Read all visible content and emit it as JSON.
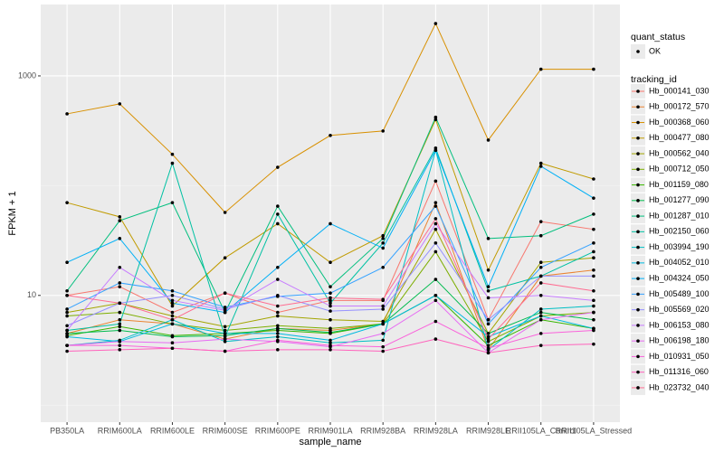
{
  "chart_data": {
    "type": "line",
    "x_label": "sample_name",
    "y_label": "FPKM + 1",
    "log_y": true,
    "grid": true,
    "ylim": [
      0.7,
      4470
    ],
    "yticks": [
      10,
      1000
    ],
    "y_minor_ticks": [
      1,
      100
    ],
    "point_legend_title": "quant_status",
    "point_legend_label": "OK",
    "legend_title": "tracking_id",
    "legend_position": "right",
    "categories": [
      "PB350LA",
      "RRIM600LA",
      "RRIM600LE",
      "RRIM600SE",
      "RRIM600PE",
      "RRIM901LA",
      "RRIM928BA",
      "RRIM928LA",
      "RRIM928LE",
      "RRII105LA_Control",
      "RRII105LA_Stressed"
    ],
    "series": [
      {
        "name": "Hb_000141_030",
        "color": "#F8766D",
        "values": [
          10,
          12,
          7,
          10.5,
          7,
          9,
          9,
          110,
          6,
          47,
          40
        ]
      },
      {
        "name": "Hb_000172_570",
        "color": "#EA8331",
        "values": [
          4.5,
          6,
          5.5,
          4,
          5,
          4.8,
          5.5,
          70,
          3.2,
          15,
          17
        ]
      },
      {
        "name": "Hb_000368_060",
        "color": "#D89000",
        "values": [
          451,
          556,
          193,
          57,
          147,
          287,
          315,
          3000,
          260,
          1150,
          1150
        ]
      },
      {
        "name": "Hb_000477_080",
        "color": "#C09B00",
        "values": [
          70,
          52,
          8,
          22,
          45,
          20,
          35,
          400,
          17,
          160,
          115
        ]
      },
      {
        "name": "Hb_000562_040",
        "color": "#A3A500",
        "values": [
          7,
          8.5,
          6.5,
          5.2,
          6.5,
          6,
          5.8,
          40,
          4.5,
          20,
          22
        ]
      },
      {
        "name": "Hb_000712_050",
        "color": "#7CAE00",
        "values": [
          6.5,
          7,
          5.5,
          4.8,
          5.3,
          5,
          5.5,
          25,
          3.8,
          6.5,
          7
        ]
      },
      {
        "name": "Hb_001159_080",
        "color": "#39B600",
        "values": [
          4.3,
          5.2,
          4.3,
          4.5,
          4.8,
          4.5,
          5.5,
          10,
          3.5,
          6,
          5
        ]
      },
      {
        "name": "Hb_001277_090",
        "color": "#00BB4E",
        "values": [
          4.5,
          4.8,
          4.2,
          4.3,
          5,
          4.6,
          5.5,
          14,
          4.5,
          7,
          6
        ]
      },
      {
        "name": "Hb_001287_010",
        "color": "#00BF7D",
        "values": [
          11,
          48,
          70,
          7,
          65,
          12,
          33,
          420,
          33,
          35,
          55
        ]
      },
      {
        "name": "Hb_002150_060",
        "color": "#00C1A3",
        "values": [
          4.8,
          5.5,
          160,
          4.2,
          55,
          8.5,
          30,
          220,
          11,
          15,
          25
        ]
      },
      {
        "name": "Hb_003994_190",
        "color": "#00BFC4",
        "values": [
          3.5,
          3.9,
          6,
          3.8,
          4.2,
          3.7,
          3.9,
          210,
          3.2,
          7.5,
          8
        ]
      },
      {
        "name": "Hb_004052_010",
        "color": "#00BAE0",
        "values": [
          4.2,
          3.8,
          5.5,
          4.5,
          4.5,
          3.9,
          5.5,
          10,
          4.2,
          6.5,
          5
        ]
      },
      {
        "name": "Hb_004324_050",
        "color": "#00B0F6",
        "values": [
          20,
          33,
          8.5,
          7,
          18,
          45,
          27,
          210,
          12,
          150,
          77
        ]
      },
      {
        "name": "Hb_005489_100",
        "color": "#35A2FF",
        "values": [
          7.5,
          13,
          11,
          7.8,
          9.8,
          10.5,
          18,
          65,
          5.5,
          18,
          30
        ]
      },
      {
        "name": "Hb_005569_020",
        "color": "#9590FF",
        "values": [
          5.3,
          8.5,
          10,
          7.5,
          10,
          7.2,
          7.5,
          30,
          6,
          15,
          15
        ]
      },
      {
        "name": "Hb_006153_080",
        "color": "#C77CFF",
        "values": [
          4.8,
          18,
          9,
          7.3,
          14,
          8,
          8,
          45,
          9.5,
          10,
          9
        ]
      },
      {
        "name": "Hb_006198_180",
        "color": "#E76BF3",
        "values": [
          3.5,
          3.8,
          3.7,
          4,
          3.8,
          3.4,
          4.5,
          9,
          3,
          6,
          7
        ]
      },
      {
        "name": "Hb_010931_050",
        "color": "#FA62DB",
        "values": [
          3.5,
          3.5,
          3.3,
          3.1,
          3.9,
          3.5,
          3.4,
          5.8,
          3.3,
          4.5,
          4.8
        ]
      },
      {
        "name": "Hb_011316_060",
        "color": "#FF62BC",
        "values": [
          3.1,
          3.2,
          3.3,
          3.1,
          3.2,
          3.2,
          3.1,
          4,
          3,
          3.5,
          3.6
        ]
      },
      {
        "name": "Hb_023732_040",
        "color": "#FF6C91",
        "values": [
          10,
          8.5,
          6,
          10.5,
          8,
          9.5,
          9.2,
          50,
          4,
          13,
          11
        ]
      }
    ]
  }
}
